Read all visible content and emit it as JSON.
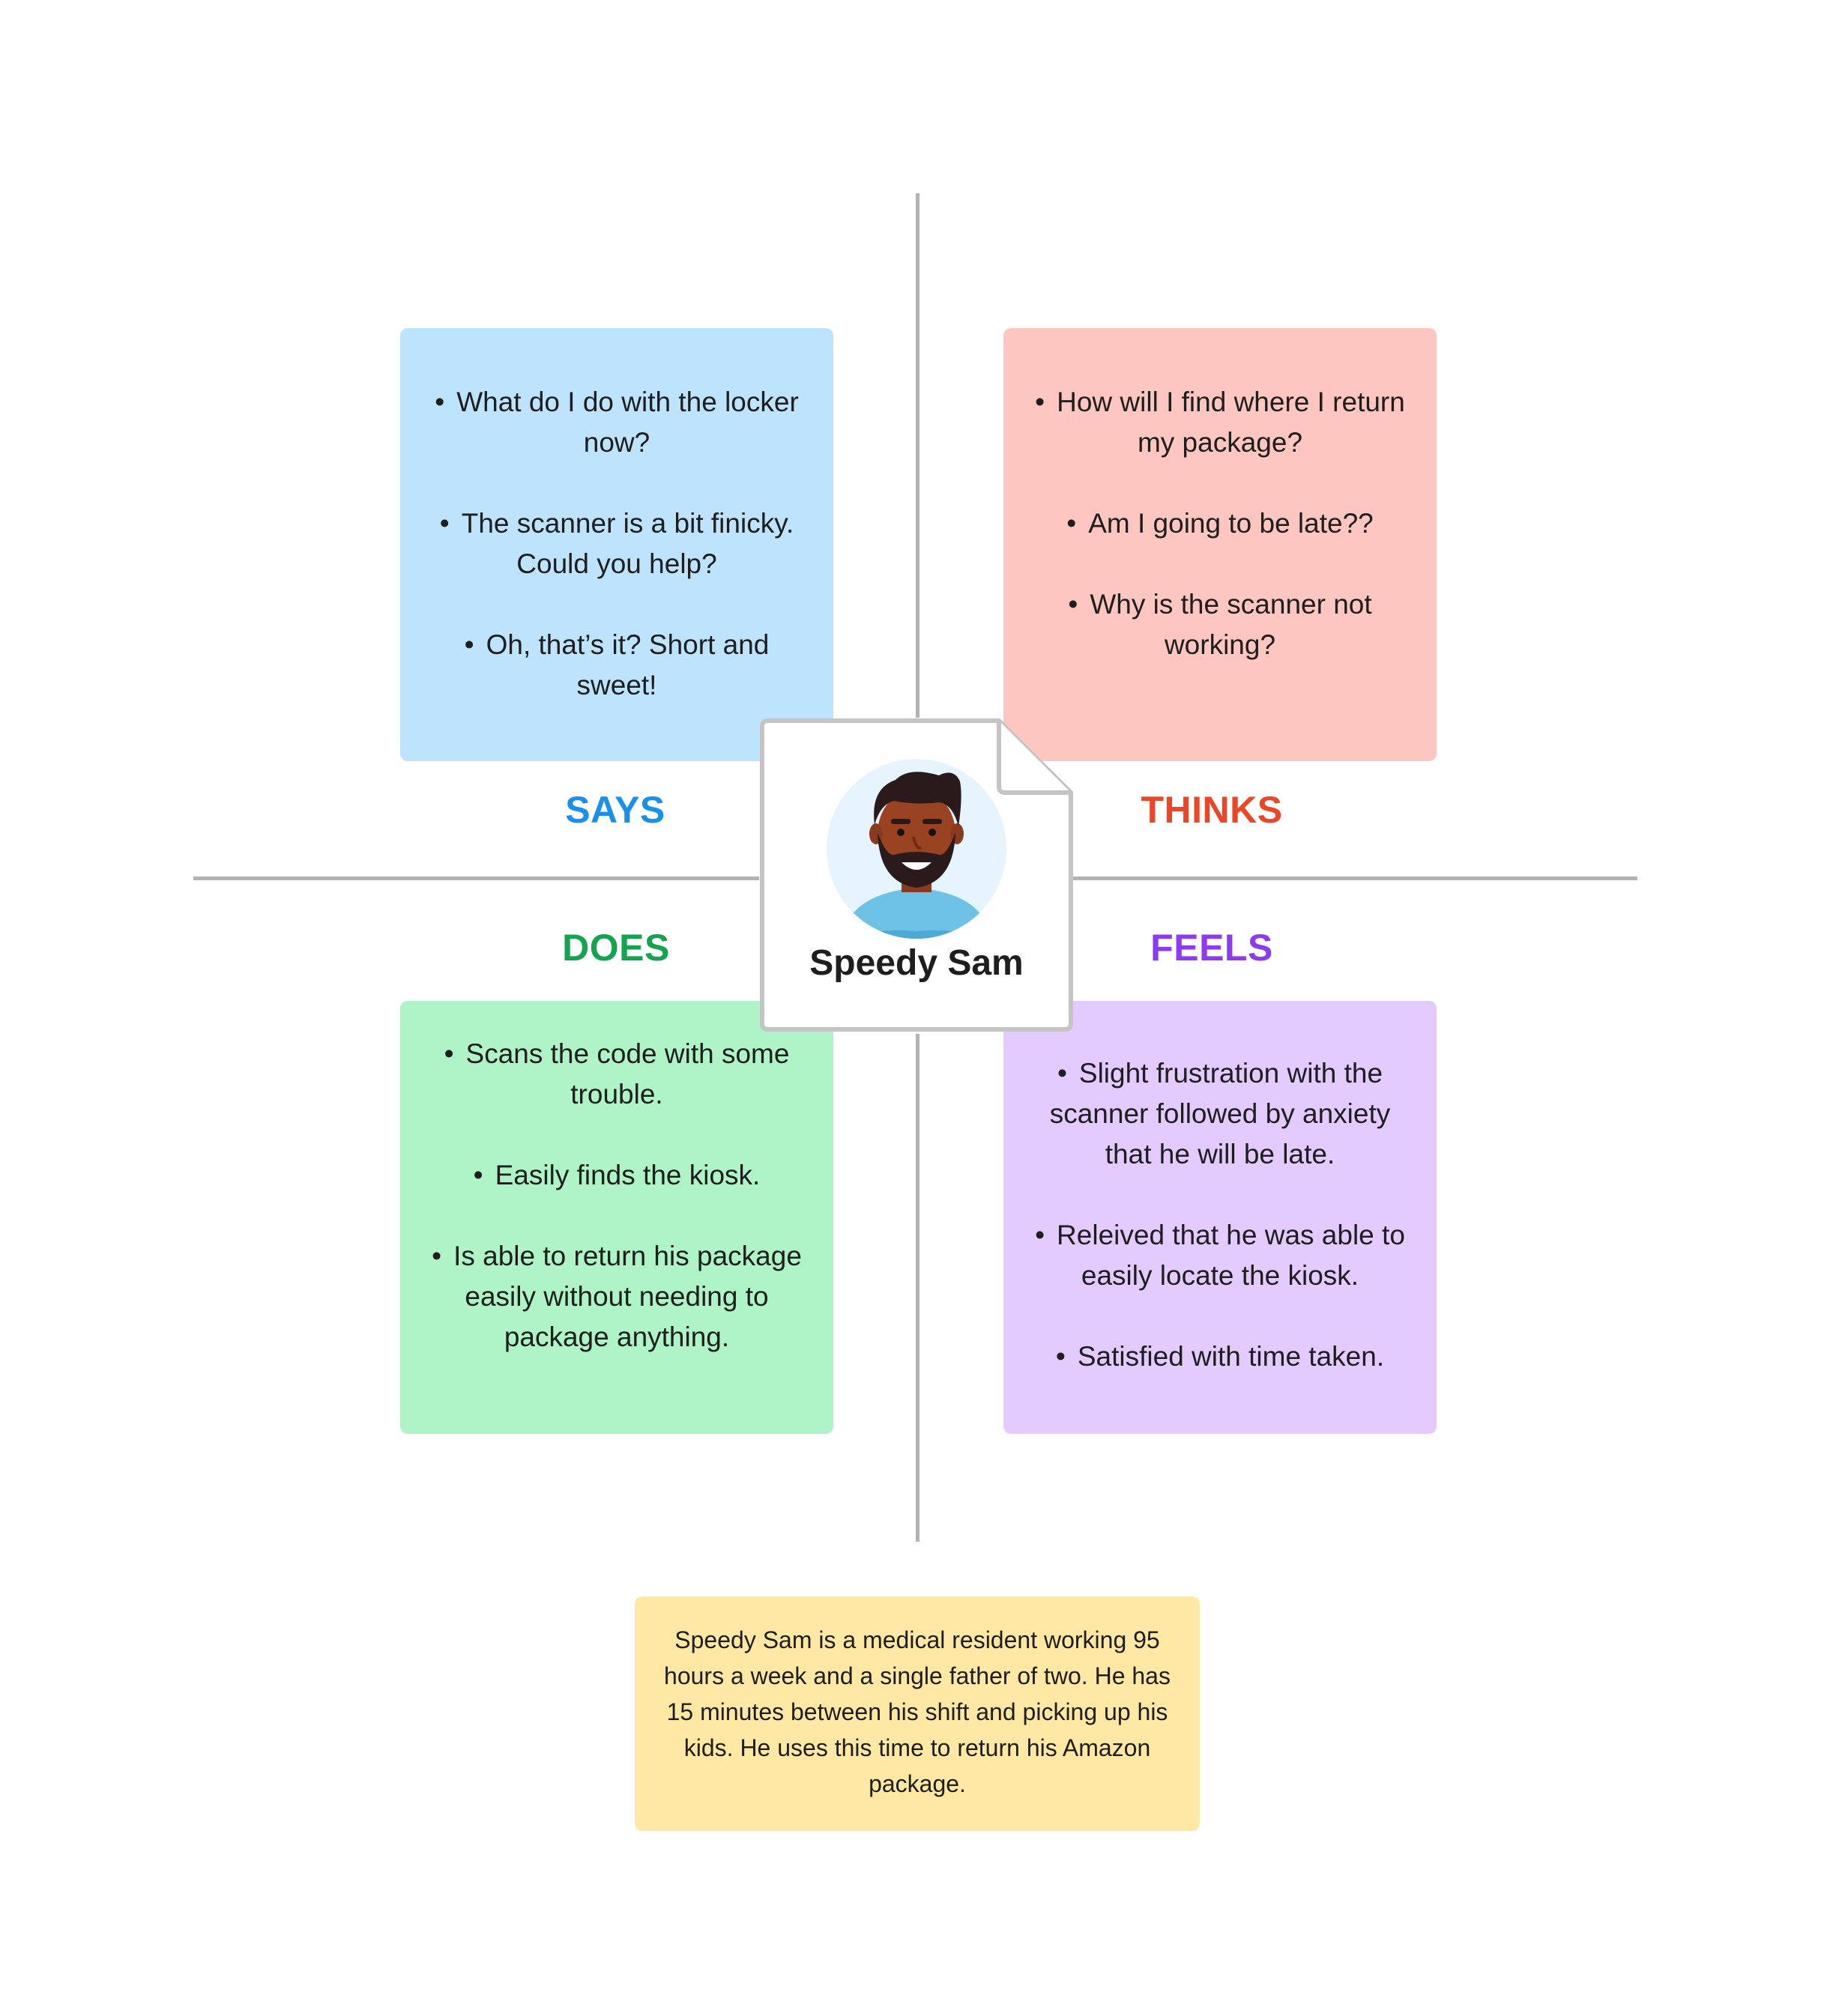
{
  "quadrants": {
    "says": {
      "label": "SAYS",
      "items": [
        "What do I do with the locker now?",
        "The scanner is a bit finicky. Could you help?",
        "Oh, that’s it? Short and sweet!"
      ]
    },
    "thinks": {
      "label": "THINKS",
      "items": [
        "How will I find where I return my package?",
        "Am I going to be late??",
        "Why is the scanner not working?"
      ]
    },
    "does": {
      "label": "DOES",
      "items": [
        "Scans the code with some trouble.",
        "Easily finds the kiosk.",
        "Is able to return his package easily without needing to package anything."
      ]
    },
    "feels": {
      "label": "FEELS",
      "items": [
        "Slight frustration with the scanner followed by anxiety that he will be late.",
        "Releived that he was able to easily locate the kiosk.",
        "Satisfied with time taken."
      ]
    }
  },
  "persona": {
    "name": "Speedy Sam",
    "avatar_icon": "person-avatar-icon"
  },
  "summary": "Speedy Sam is a medical resident working 95 hours a week and a single father of two. He has 15 minutes between his shift and picking up his kids. He uses this time to return his Amazon package.",
  "colors": {
    "says_note": "#bde3fd",
    "thinks_note": "#fec6c0",
    "does_note": "#aef4c6",
    "feels_note": "#e3cbff",
    "summary_note": "#ffe8a3",
    "says_label": "#1b90e8",
    "thinks_label": "#ea4628",
    "does_label": "#14a34e",
    "feels_label": "#8c3cec",
    "axis": "#b3b3b3"
  }
}
